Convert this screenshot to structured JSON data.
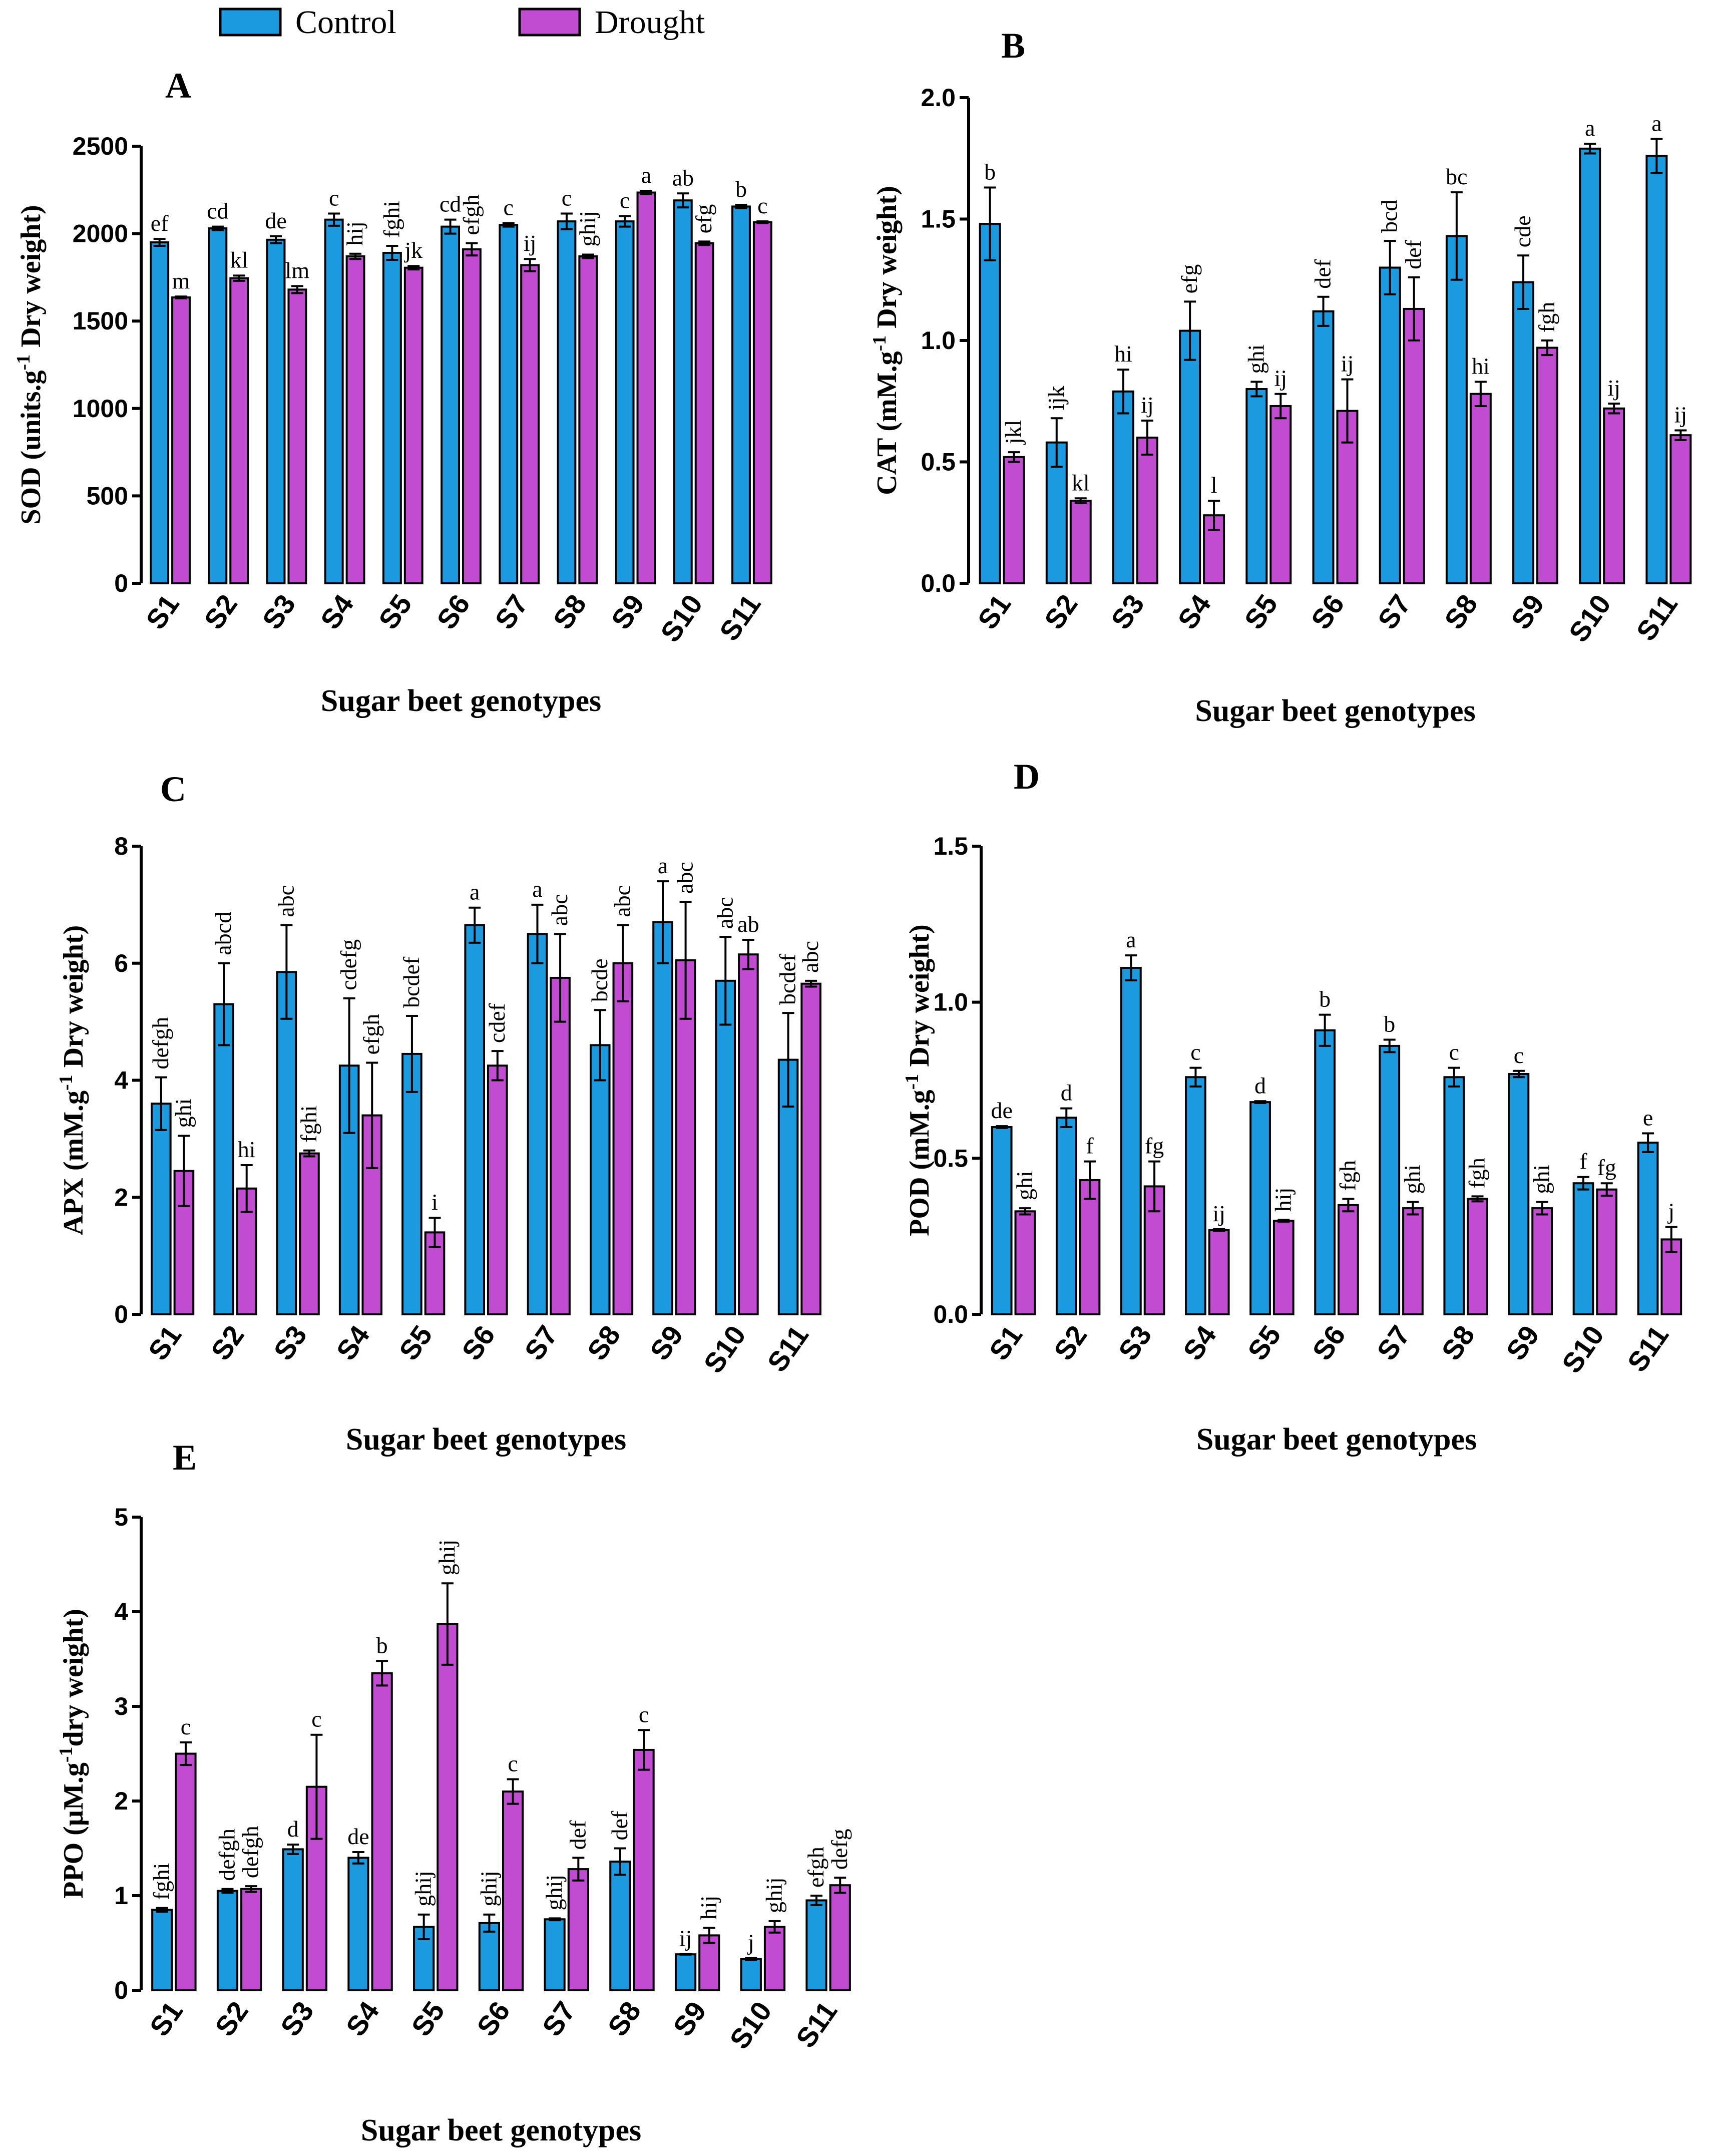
{
  "legend": [
    {
      "name": "Control",
      "color": "#1b9ae0"
    },
    {
      "name": "Drought",
      "color": "#c14bd1"
    }
  ],
  "chart_data": [
    {
      "panel": "A",
      "type": "bar",
      "title": "A",
      "ylabel_parts": [
        "SOD (units.g",
        "-1",
        " Dry weight)"
      ],
      "xlabel": "Sugar beet genotypes",
      "categories": [
        "S1",
        "S2",
        "S3",
        "S4",
        "S5",
        "S6",
        "S7",
        "S8",
        "S9",
        "S10",
        "S11"
      ],
      "ylim": [
        0,
        2500
      ],
      "yticks": [
        0,
        500,
        1000,
        1500,
        2000,
        2500
      ],
      "series": [
        {
          "name": "Control",
          "values": [
            1950,
            2030,
            1965,
            2080,
            1890,
            2040,
            2050,
            2070,
            2070,
            2190,
            2155
          ],
          "errors": [
            20,
            10,
            20,
            35,
            40,
            40,
            10,
            45,
            30,
            40,
            10
          ],
          "letters": [
            "ef",
            "cd",
            "de",
            "c",
            "fghi",
            "cd",
            "c",
            "c",
            "c",
            "ab",
            "b"
          ]
        },
        {
          "name": "Drought",
          "values": [
            1635,
            1745,
            1680,
            1870,
            1805,
            1910,
            1820,
            1870,
            2235,
            1945,
            2065
          ],
          "errors": [
            5,
            15,
            20,
            15,
            10,
            35,
            35,
            10,
            10,
            10,
            5
          ],
          "letters": [
            "m",
            "kl",
            "lm",
            "hij",
            "jk",
            "efgh",
            "ij",
            "ghij",
            "a",
            "efg",
            "c"
          ]
        }
      ]
    },
    {
      "panel": "B",
      "type": "bar",
      "title": "B",
      "ylabel_parts": [
        "CAT (mM.g",
        "-1",
        " Dry weight)"
      ],
      "xlabel": "Sugar beet genotypes",
      "categories": [
        "S1",
        "S2",
        "S3",
        "S4",
        "S5",
        "S6",
        "S7",
        "S8",
        "S9",
        "S10",
        "S11"
      ],
      "ylim": [
        0,
        2.0
      ],
      "yticks": [
        "0.0",
        "0.5",
        "1.0",
        "1.5",
        "2.0"
      ],
      "series": [
        {
          "name": "Control",
          "values": [
            1.48,
            0.58,
            0.79,
            1.04,
            0.8,
            1.12,
            1.3,
            1.43,
            1.24,
            1.79,
            1.76
          ],
          "errors": [
            0.15,
            0.1,
            0.09,
            0.12,
            0.03,
            0.06,
            0.11,
            0.18,
            0.11,
            0.02,
            0.07
          ],
          "letters": [
            "b",
            "ijk",
            "hi",
            "efg",
            "ghi",
            "def",
            "bcd",
            "bc",
            "cde",
            "a",
            "a"
          ]
        },
        {
          "name": "Drought",
          "values": [
            0.52,
            0.34,
            0.6,
            0.28,
            0.73,
            0.71,
            1.13,
            0.78,
            0.97,
            0.72,
            0.61
          ],
          "errors": [
            0.02,
            0.01,
            0.07,
            0.06,
            0.05,
            0.13,
            0.13,
            0.05,
            0.03,
            0.02,
            0.02
          ],
          "letters": [
            "jkl",
            "kl",
            "ij",
            "l",
            "ij",
            "ij",
            "def",
            "hi",
            "fgh",
            "ij",
            "ij"
          ]
        }
      ]
    },
    {
      "panel": "C",
      "type": "bar",
      "title": "C",
      "ylabel_parts": [
        "APX (mM.g",
        "-1",
        " Dry weight)"
      ],
      "xlabel": "Sugar beet genotypes",
      "categories": [
        "S1",
        "S2",
        "S3",
        "S4",
        "S5",
        "S6",
        "S7",
        "S8",
        "S9",
        "S10",
        "S11"
      ],
      "ylim": [
        0,
        8
      ],
      "yticks": [
        0,
        2,
        4,
        6,
        8
      ],
      "series": [
        {
          "name": "Control",
          "values": [
            3.6,
            5.3,
            5.85,
            4.25,
            4.45,
            6.65,
            6.5,
            4.6,
            6.7,
            5.7,
            4.35
          ],
          "errors": [
            0.45,
            0.7,
            0.8,
            1.15,
            0.65,
            0.3,
            0.5,
            0.6,
            0.7,
            0.75,
            0.8
          ],
          "letters": [
            "defgh",
            "abcd",
            "abc",
            "cdefg",
            "bcdef",
            "a",
            "a",
            "bcde",
            "a",
            "abc",
            "bcdef"
          ]
        },
        {
          "name": "Drought",
          "values": [
            2.45,
            2.15,
            2.75,
            3.4,
            1.4,
            4.25,
            5.75,
            6.0,
            6.05,
            6.15,
            5.65
          ],
          "errors": [
            0.6,
            0.4,
            0.05,
            0.9,
            0.25,
            0.25,
            0.75,
            0.65,
            1.0,
            0.25,
            0.05
          ],
          "letters": [
            "ghi",
            "hi",
            "fghi",
            "efgh",
            "i",
            "cdef",
            "abc",
            "abc",
            "abc",
            "ab",
            "abc"
          ]
        }
      ]
    },
    {
      "panel": "D",
      "type": "bar",
      "title": "D",
      "ylabel_parts": [
        "POD (mM.g",
        "-1",
        " Dry weight)"
      ],
      "xlabel": "Sugar beet genotypes",
      "categories": [
        "S1",
        "S2",
        "S3",
        "S4",
        "S5",
        "S6",
        "S7",
        "S8",
        "S9",
        "S10",
        "S11"
      ],
      "ylim": [
        0,
        1.5
      ],
      "yticks": [
        "0.0",
        "0.5",
        "1.0",
        "1.5"
      ],
      "series": [
        {
          "name": "Control",
          "values": [
            0.6,
            0.63,
            1.11,
            0.76,
            0.68,
            0.91,
            0.86,
            0.76,
            0.77,
            0.42,
            0.55
          ],
          "errors": [
            0.003,
            0.03,
            0.04,
            0.03,
            0.003,
            0.05,
            0.02,
            0.03,
            0.01,
            0.02,
            0.03
          ],
          "letters": [
            "de",
            "d",
            "a",
            "c",
            "d",
            "b",
            "b",
            "c",
            "c",
            "f",
            "e"
          ]
        },
        {
          "name": "Drought",
          "values": [
            0.33,
            0.43,
            0.41,
            0.27,
            0.3,
            0.35,
            0.34,
            0.37,
            0.34,
            0.4,
            0.24
          ],
          "errors": [
            0.01,
            0.06,
            0.08,
            0.003,
            0.003,
            0.02,
            0.02,
            0.008,
            0.02,
            0.02,
            0.04
          ],
          "letters": [
            "ghi",
            "f",
            "fg",
            "ij",
            "hij",
            "fgh",
            "ghi",
            "fgh",
            "ghi",
            "fg",
            "j"
          ]
        }
      ]
    },
    {
      "panel": "E",
      "type": "bar",
      "title": "E",
      "ylabel_parts": [
        "PPO (µM.g",
        "-1",
        "dry weight)"
      ],
      "xlabel": "Sugar beet genotypes",
      "categories": [
        "S1",
        "S2",
        "S3",
        "S4",
        "S5",
        "S6",
        "S7",
        "S8",
        "S9",
        "S10",
        "S11"
      ],
      "ylim": [
        0,
        5
      ],
      "yticks": [
        0,
        1,
        2,
        3,
        4,
        5
      ],
      "series": [
        {
          "name": "Control",
          "values": [
            0.85,
            1.05,
            1.49,
            1.4,
            0.67,
            0.71,
            0.75,
            1.36,
            0.38,
            0.33,
            0.95
          ],
          "errors": [
            0.02,
            0.02,
            0.05,
            0.06,
            0.13,
            0.09,
            0.01,
            0.14,
            0.003,
            0.01,
            0.05
          ],
          "letters": [
            "fghi",
            "defgh",
            "d",
            "de",
            "ghij",
            "ghij",
            "ghij",
            "def",
            "ij",
            "j",
            "efgh"
          ]
        },
        {
          "name": "Drought",
          "values": [
            2.5,
            1.07,
            2.15,
            3.35,
            3.87,
            2.1,
            1.28,
            2.54,
            0.58,
            0.67,
            1.11
          ],
          "errors": [
            0.12,
            0.03,
            0.55,
            0.13,
            0.43,
            0.13,
            0.12,
            0.21,
            0.08,
            0.06,
            0.08
          ],
          "letters": [
            "c",
            "defgh",
            "c",
            "b",
            "ghij",
            "c",
            "def",
            "c",
            "hij",
            "ghij",
            "defg"
          ]
        }
      ]
    }
  ]
}
